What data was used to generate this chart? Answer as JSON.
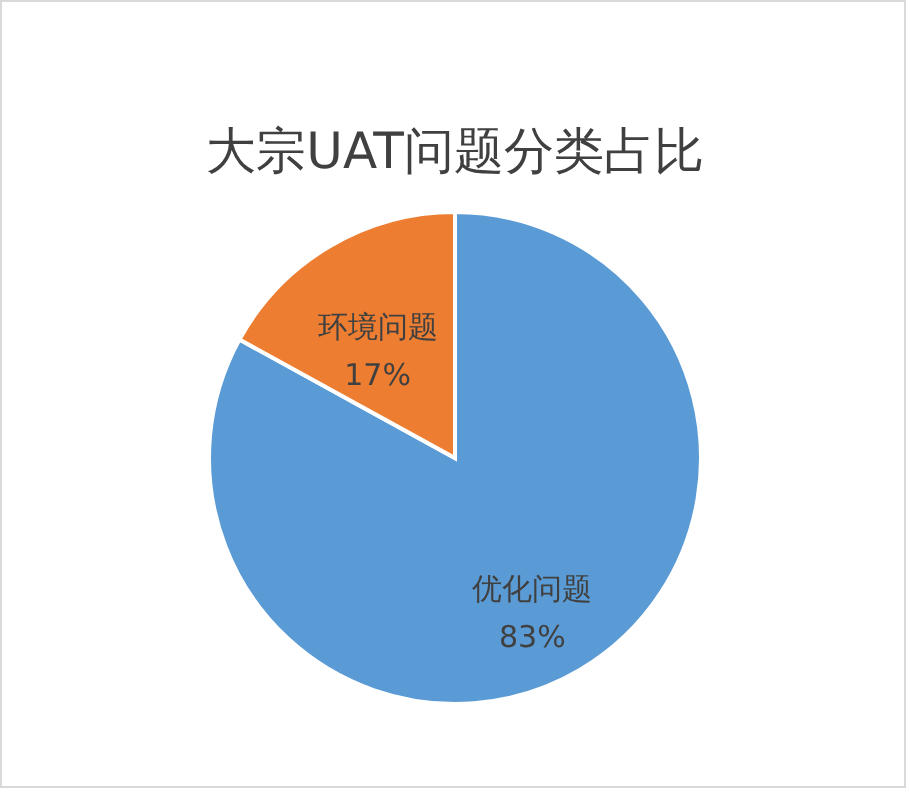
{
  "chart_data": {
    "type": "pie",
    "title": "大宗UAT问题分类占比",
    "categories": [
      "优化问题",
      "环境问题"
    ],
    "values": [
      83,
      17
    ],
    "colors": [
      "#5b9bd5",
      "#ed7d31"
    ],
    "value_labels": [
      "83%",
      "17%"
    ]
  }
}
